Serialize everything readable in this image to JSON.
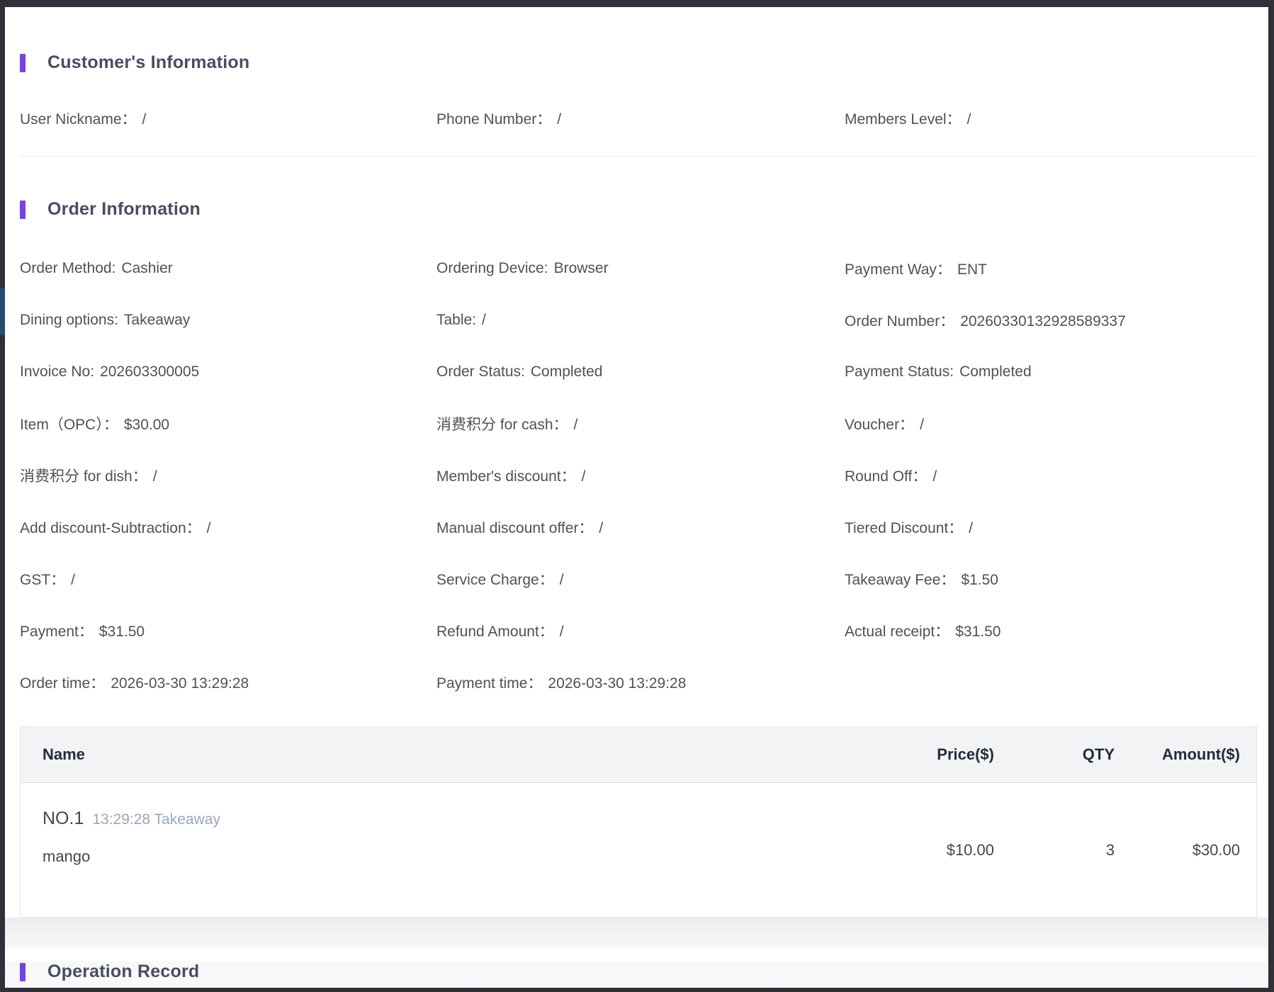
{
  "colors": {
    "accent_purple": "#7643e6",
    "frame_dark": "#2f3038",
    "frame_highlight_blue": "#27496f",
    "table_header_bg": "#f2f3f5",
    "heading_text": "#474e61",
    "body_text": "#4f5153",
    "muted_text": "#9aa6b8"
  },
  "customer": {
    "title": "Customer's Information",
    "fields": [
      {
        "label": "User Nickname：",
        "value": "/"
      },
      {
        "label": "Phone Number：",
        "value": "/"
      },
      {
        "label": "Members Level：",
        "value": "/"
      }
    ]
  },
  "order": {
    "title": "Order Information",
    "fields": [
      {
        "label": "Order Method:",
        "value": "Cashier"
      },
      {
        "label": "Ordering Device:",
        "value": "Browser"
      },
      {
        "label": "Payment Way：",
        "value": "ENT"
      },
      {
        "label": "Dining options:",
        "value": "Takeaway"
      },
      {
        "label": "Table:",
        "value": "/"
      },
      {
        "label": "Order Number：",
        "value": "20260330132928589337"
      },
      {
        "label": "Invoice No:",
        "value": "202603300005"
      },
      {
        "label": "Order Status:",
        "value": "Completed"
      },
      {
        "label": "Payment Status:",
        "value": "Completed"
      },
      {
        "label": "Item（OPC）：",
        "value": "$30.00"
      },
      {
        "label": "消费积分 for cash：",
        "value": "/"
      },
      {
        "label": "Voucher：",
        "value": "/"
      },
      {
        "label": "消费积分 for dish：",
        "value": "/"
      },
      {
        "label": "Member's discount：",
        "value": "/"
      },
      {
        "label": "Round Off：",
        "value": "/"
      },
      {
        "label": "Add discount-Subtraction：",
        "value": "/"
      },
      {
        "label": "Manual discount offer：",
        "value": "/"
      },
      {
        "label": "Tiered Discount：",
        "value": "/"
      },
      {
        "label": "GST：",
        "value": "/"
      },
      {
        "label": "Service Charge：",
        "value": "/"
      },
      {
        "label": "Takeaway Fee：",
        "value": "$1.50"
      },
      {
        "label": "Payment：",
        "value": "$31.50"
      },
      {
        "label": "Refund Amount：",
        "value": "/"
      },
      {
        "label": "Actual receipt：",
        "value": "$31.50"
      },
      {
        "label": "Order time：",
        "value": "2026-03-30 13:29:28"
      },
      {
        "label": "Payment time：",
        "value": "2026-03-30 13:29:28"
      }
    ]
  },
  "items_table": {
    "columns": [
      "Name",
      "Price($)",
      "QTY",
      "Amount($)"
    ],
    "rows": [
      {
        "no": "NO.1",
        "meta": "13:29:28 Takeaway",
        "name": "mango",
        "price": "$10.00",
        "qty": "3",
        "amount": "$30.00"
      }
    ]
  },
  "operation": {
    "title": "Operation Record"
  }
}
